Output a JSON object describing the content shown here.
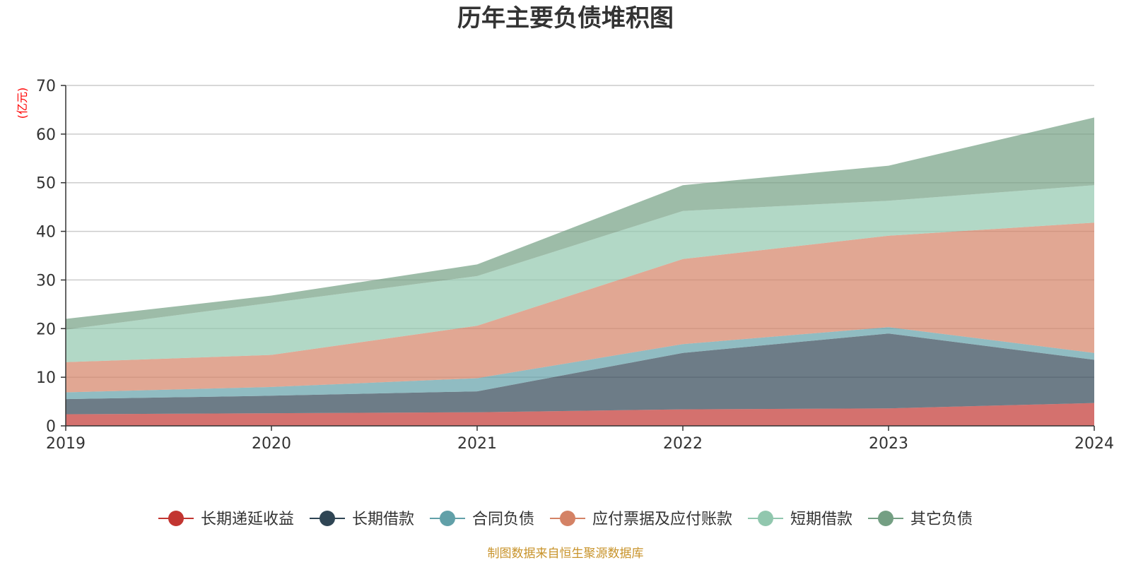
{
  "chart_data": {
    "type": "area",
    "stacked": true,
    "title": "历年主要负债堆积图",
    "ylabel": "(亿元)",
    "xlabel": "",
    "x": [
      "2019",
      "2020",
      "2021",
      "2022",
      "2023",
      "2024"
    ],
    "ylim": [
      0,
      70
    ],
    "yticks": [
      0,
      10,
      20,
      30,
      40,
      50,
      60,
      70
    ],
    "grid": true,
    "legend_position": "bottom",
    "series": [
      {
        "name": "长期递延收益",
        "color": "#c23531",
        "values": [
          2.4,
          2.6,
          2.8,
          3.4,
          3.6,
          4.7
        ]
      },
      {
        "name": "长期借款",
        "color": "#2f4554",
        "values": [
          3.1,
          3.6,
          4.3,
          11.6,
          15.4,
          8.9
        ]
      },
      {
        "name": "合同负债",
        "color": "#61a0a8",
        "values": [
          1.4,
          1.8,
          2.7,
          1.8,
          1.3,
          1.4
        ]
      },
      {
        "name": "应付票据及应付账款",
        "color": "#d48265",
        "values": [
          6.2,
          6.6,
          10.8,
          17.5,
          18.8,
          26.8
        ]
      },
      {
        "name": "短期借款",
        "color": "#91c7ae",
        "values": [
          6.7,
          10.7,
          10.2,
          9.9,
          7.2,
          7.7
        ]
      },
      {
        "name": "其它负债",
        "color": "#749f83",
        "values": [
          2.2,
          1.5,
          2.4,
          5.3,
          7.2,
          13.9
        ]
      }
    ]
  },
  "source_note": "制图数据来自恒生聚源数据库",
  "colors": {
    "axis": "#333333",
    "grid": "#cccccc",
    "unit_label": "#ff0000",
    "source_note": "#c8932a"
  }
}
